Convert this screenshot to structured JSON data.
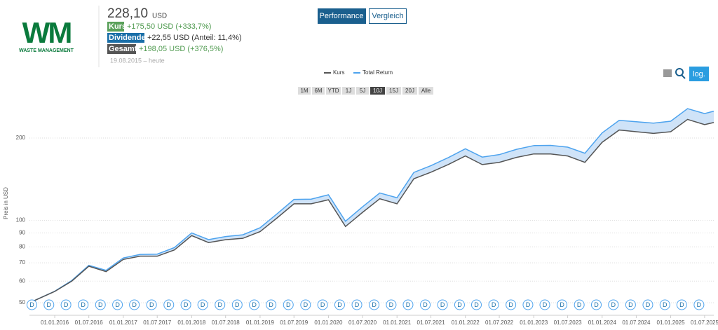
{
  "header": {
    "logo": "WM",
    "logo_subtitle": "WASTE MANAGEMENT",
    "price": "228,10",
    "currency": "USD",
    "rows": [
      {
        "badge": "Kurs",
        "text": "+175,50 USD (+333,7%)"
      },
      {
        "badge": "Dividende",
        "text": "+22,55 USD (Anteil: 11,4%)"
      },
      {
        "badge": "Gesamt",
        "text": "+198,05 USD (+376,5%)"
      }
    ],
    "period": "19.08.2015 – heute",
    "tabs": [
      "Performance",
      "Vergleich"
    ],
    "ranges": [
      "1M",
      "6M",
      "YTD",
      "1J",
      "5J",
      "10J",
      "15J",
      "20J",
      "Alle"
    ],
    "active_range": "10J",
    "log_button": "log."
  },
  "chart_data": {
    "type": "line",
    "y_label": "Preis in USD",
    "log_scale": true,
    "grid": true,
    "x": [
      "19.08.2015",
      "01.01.2016",
      "01.04.2016",
      "01.07.2016",
      "01.10.2016",
      "01.01.2017",
      "01.04.2017",
      "01.07.2017",
      "01.10.2017",
      "01.01.2018",
      "01.04.2018",
      "01.07.2018",
      "01.10.2018",
      "01.01.2019",
      "01.04.2019",
      "01.07.2019",
      "01.10.2019",
      "01.01.2020",
      "01.04.2020",
      "01.07.2020",
      "01.10.2020",
      "01.01.2021",
      "01.04.2021",
      "01.07.2021",
      "01.10.2021",
      "01.01.2022",
      "01.04.2022",
      "01.07.2022",
      "01.10.2022",
      "01.01.2023",
      "01.04.2023",
      "01.07.2023",
      "01.10.2023",
      "01.01.2024",
      "01.04.2024",
      "01.07.2024",
      "01.10.2024",
      "01.01.2025",
      "01.04.2025",
      "01.07.2025",
      "19.08.2025"
    ],
    "series": [
      {
        "name": "Kurs",
        "color": "#555555",
        "values": [
          50,
          55,
          60,
          68,
          65,
          72,
          74,
          74,
          78,
          88,
          83,
          85,
          86,
          91,
          102,
          115,
          115,
          119,
          95,
          107,
          120,
          115,
          142,
          150,
          160,
          172,
          160,
          163,
          170,
          175,
          175,
          172,
          163,
          193,
          214,
          211,
          208,
          211,
          234,
          224,
          228
        ]
      },
      {
        "name": "Total Return",
        "color": "#4da3ee",
        "values": [
          50,
          55.1,
          60.3,
          68.5,
          65.7,
          72.9,
          75.1,
          75.3,
          79.6,
          90,
          85.1,
          87.3,
          88.6,
          94,
          105.6,
          119.3,
          119.6,
          124.1,
          99.3,
          112.1,
          126,
          121,
          149.8,
          158.6,
          169.6,
          182.8,
          170.4,
          174,
          181.9,
          187.7,
          188.1,
          185.3,
          176,
          208.9,
          232.2,
          229.5,
          226.7,
          230.5,
          256.2,
          245.8,
          250.8
        ]
      }
    ],
    "xlim": [
      "19.08.2015",
      "19.08.2025"
    ],
    "xticks": [
      "01.01.2016",
      "01.07.2016",
      "01.01.2017",
      "01.07.2017",
      "01.01.2018",
      "01.07.2018",
      "01.01.2019",
      "01.07.2019",
      "01.01.2020",
      "01.07.2020",
      "01.01.2021",
      "01.07.2021",
      "01.01.2022",
      "01.07.2022",
      "01.01.2023",
      "01.07.2023",
      "01.01.2024",
      "01.07.2024",
      "01.01.2025",
      "01.07.2025"
    ],
    "ylim": [
      45,
      280
    ],
    "yticks": [
      50,
      60,
      70,
      80,
      90,
      100,
      200
    ],
    "dividend_marker": "D",
    "dividend_dates": [
      "01.09.2015",
      "01.12.2015",
      "01.03.2016",
      "01.06.2016",
      "01.09.2016",
      "01.12.2016",
      "01.03.2017",
      "01.06.2017",
      "01.09.2017",
      "01.12.2017",
      "01.03.2018",
      "01.06.2018",
      "01.09.2018",
      "01.12.2018",
      "01.03.2019",
      "01.06.2019",
      "01.09.2019",
      "01.12.2019",
      "01.03.2020",
      "01.06.2020",
      "01.09.2020",
      "01.12.2020",
      "01.03.2021",
      "01.06.2021",
      "01.09.2021",
      "01.12.2021",
      "01.03.2022",
      "01.06.2022",
      "01.09.2022",
      "01.12.2022",
      "01.03.2023",
      "01.06.2023",
      "01.09.2023",
      "01.12.2023",
      "01.03.2024",
      "01.06.2024",
      "01.09.2024",
      "01.12.2024",
      "01.03.2025",
      "01.06.2025"
    ]
  }
}
